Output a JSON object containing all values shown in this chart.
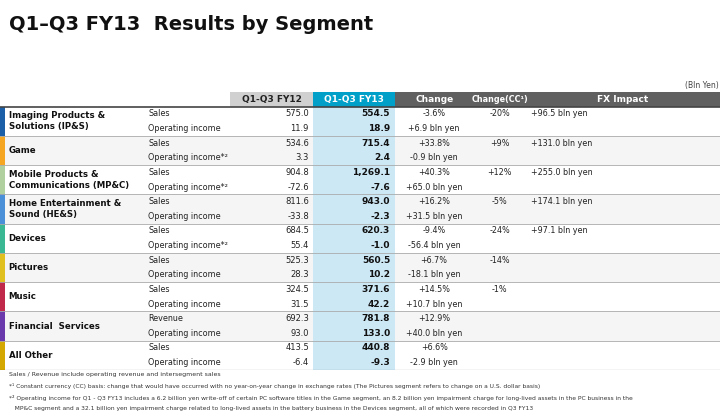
{
  "title": "Q1–Q3 FY13  Results by Segment",
  "bln_yen_label": "(Bln Yen)",
  "col_headers": [
    "Q1-Q3 FY12",
    "Q1-Q3 FY13",
    "Change",
    "Change(CC¹)",
    "FX Impact"
  ],
  "segments": [
    {
      "name": "Imaging Products &\nSolutions (IP&S)",
      "color": "#1a5fa8",
      "rows": [
        {
          "label": "Sales",
          "fy12": "575.0",
          "fy13": "554.5",
          "change": "-3.6%",
          "change_cc": "-20%",
          "fx": "+96.5 bln yen"
        },
        {
          "label": "Operating income",
          "fy12": "11.9",
          "fy13": "18.9",
          "change": "+6.9 bln yen",
          "change_cc": "",
          "fx": ""
        }
      ]
    },
    {
      "name": "Game",
      "color": "#f5a623",
      "rows": [
        {
          "label": "Sales",
          "fy12": "534.6",
          "fy13": "715.4",
          "change": "+33.8%",
          "change_cc": "+9%",
          "fx": "+131.0 bln yen"
        },
        {
          "label": "Operating income*²",
          "fy12": "3.3",
          "fy13": "2.4",
          "change": "-0.9 bln yen",
          "change_cc": "",
          "fx": ""
        }
      ]
    },
    {
      "name": "Mobile Products &\nCommunications (MP&C)",
      "color": "#b0d0a0",
      "rows": [
        {
          "label": "Sales",
          "fy12": "904.8",
          "fy13": "1,269.1",
          "change": "+40.3%",
          "change_cc": "+12%",
          "fx": "+255.0 bln yen"
        },
        {
          "label": "Operating income*²",
          "fy12": "-72.6",
          "fy13": "-7.6",
          "change": "+65.0 bln yen",
          "change_cc": "",
          "fx": ""
        }
      ]
    },
    {
      "name": "Home Entertainment &\nSound (HE&S)",
      "color": "#4a90d9",
      "rows": [
        {
          "label": "Sales",
          "fy12": "811.6",
          "fy13": "943.0",
          "change": "+16.2%",
          "change_cc": "-5%",
          "fx": "+174.1 bln yen"
        },
        {
          "label": "Operating income",
          "fy12": "-33.8",
          "fy13": "-2.3",
          "change": "+31.5 bln yen",
          "change_cc": "",
          "fx": ""
        }
      ]
    },
    {
      "name": "Devices",
      "color": "#3ab893",
      "rows": [
        {
          "label": "Sales",
          "fy12": "684.5",
          "fy13": "620.3",
          "change": "-9.4%",
          "change_cc": "-24%",
          "fx": "+97.1 bln yen"
        },
        {
          "label": "Operating income*²",
          "fy12": "55.4",
          "fy13": "-1.0",
          "change": "-56.4 bln yen",
          "change_cc": "",
          "fx": ""
        }
      ]
    },
    {
      "name": "Pictures",
      "color": "#e0c020",
      "rows": [
        {
          "label": "Sales",
          "fy12": "525.3",
          "fy13": "560.5",
          "change": "+6.7%",
          "change_cc": "-14%",
          "fx": ""
        },
        {
          "label": "Operating income",
          "fy12": "28.3",
          "fy13": "10.2",
          "change": "-18.1 bln yen",
          "change_cc": "",
          "fx": ""
        }
      ]
    },
    {
      "name": "Music",
      "color": "#c0294a",
      "rows": [
        {
          "label": "Sales",
          "fy12": "324.5",
          "fy13": "371.6",
          "change": "+14.5%",
          "change_cc": "-1%",
          "fx": ""
        },
        {
          "label": "Operating income",
          "fy12": "31.5",
          "fy13": "42.2",
          "change": "+10.7 bln yen",
          "change_cc": "",
          "fx": ""
        }
      ]
    },
    {
      "name": "Financial  Services",
      "color": "#6a3aad",
      "rows": [
        {
          "label": "Revenue",
          "fy12": "692.3",
          "fy13": "781.8",
          "change": "+12.9%",
          "change_cc": "",
          "fx": ""
        },
        {
          "label": "Operating income",
          "fy12": "93.0",
          "fy13": "133.0",
          "change": "+40.0 bln yen",
          "change_cc": "",
          "fx": ""
        }
      ]
    },
    {
      "name": "All Other",
      "color": "#d4a800",
      "rows": [
        {
          "label": "Sales",
          "fy12": "413.5",
          "fy13": "440.8",
          "change": "+6.6%",
          "change_cc": "",
          "fx": ""
        },
        {
          "label": "Operating income",
          "fy12": "-6.4",
          "fy13": "-9.3",
          "change": "-2.9 bln yen",
          "change_cc": "",
          "fx": ""
        }
      ]
    }
  ],
  "footnote1": "Sales / Revenue include operating revenue and intersegment sales",
  "footnote2": "*¹ Constant currency (CC) basis: change that would have occurred with no year-on-year change in exchange rates (The Pictures segment refers to change on a U.S. dollar basis)",
  "footnote3a": "*² Operating income for Q1 - Q3 FY13 includes a 6.2 billion yen write-off of certain PC software titles in the Game segment, an 8.2 billion yen impairment charge for long-lived assets in the PC business in the",
  "footnote3b": "   MP&C segment and a 32.1 billion yen impairment charge related to long-lived assets in the battery business in the Devices segment, all of which were recorded in Q3 FY13",
  "title_bg": "#d8d8d8",
  "header_fy12_bg": "#d0d0d0",
  "header_fy13_bg": "#00a0c8",
  "header_other_bg": "#606060",
  "fy13_col_bg": "#cde8f5",
  "row_bg_even": "#ffffff",
  "row_bg_odd": "#f5f5f5",
  "divider_color": "#aaaaaa",
  "border_dark": "#444444"
}
